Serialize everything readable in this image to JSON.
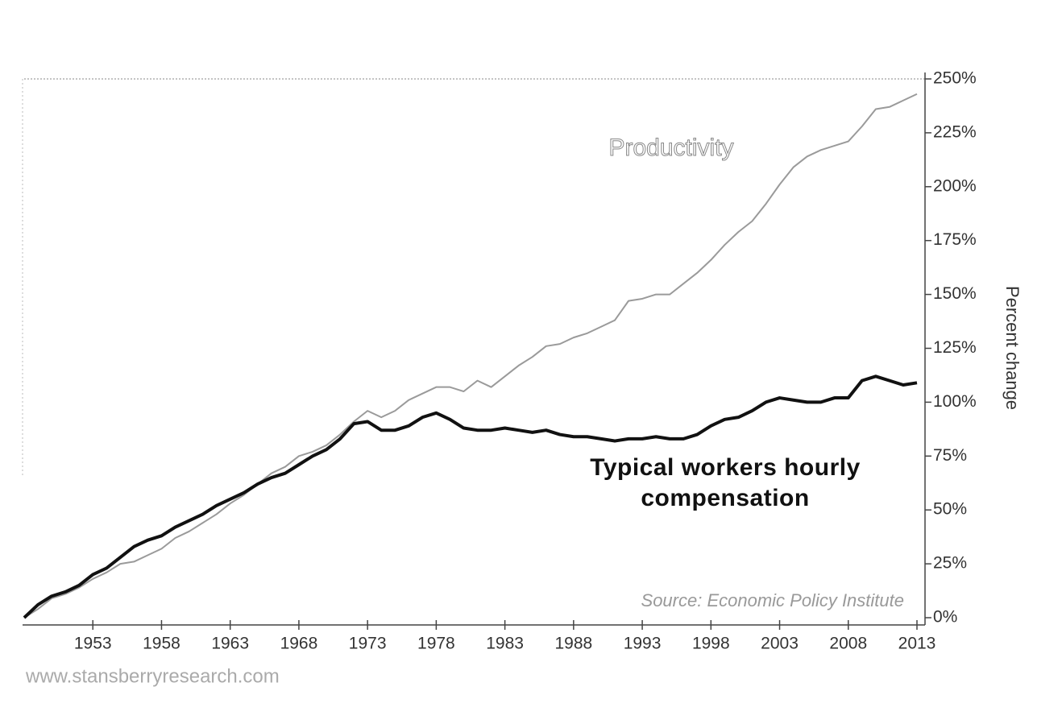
{
  "chart_data": {
    "type": "line",
    "x": [
      1948,
      1949,
      1950,
      1951,
      1952,
      1953,
      1954,
      1955,
      1956,
      1957,
      1958,
      1959,
      1960,
      1961,
      1962,
      1963,
      1964,
      1965,
      1966,
      1967,
      1968,
      1969,
      1970,
      1971,
      1972,
      1973,
      1974,
      1975,
      1976,
      1977,
      1978,
      1979,
      1980,
      1981,
      1982,
      1983,
      1984,
      1985,
      1986,
      1987,
      1988,
      1989,
      1990,
      1991,
      1992,
      1993,
      1994,
      1995,
      1996,
      1997,
      1998,
      1999,
      2000,
      2001,
      2002,
      2003,
      2004,
      2005,
      2006,
      2007,
      2008,
      2009,
      2010,
      2011,
      2012,
      2013
    ],
    "series": [
      {
        "name": "Productivity",
        "color": "#9a9a9a",
        "values": [
          0,
          4,
          9,
          11,
          14,
          18,
          21,
          25,
          26,
          29,
          32,
          37,
          40,
          44,
          48,
          53,
          57,
          62,
          67,
          70,
          75,
          77,
          80,
          85,
          91,
          96,
          93,
          96,
          101,
          104,
          107,
          107,
          105,
          110,
          107,
          112,
          117,
          121,
          126,
          127,
          130,
          132,
          135,
          138,
          147,
          148,
          150,
          150,
          155,
          160,
          166,
          173,
          179,
          184,
          192,
          201,
          209,
          214,
          217,
          219,
          221,
          228,
          236,
          237,
          240,
          243
        ]
      },
      {
        "name": "Typical workers hourly compensation",
        "color": "#111111",
        "values": [
          0,
          6,
          10,
          12,
          15,
          20,
          23,
          28,
          33,
          36,
          38,
          42,
          45,
          48,
          52,
          55,
          58,
          62,
          65,
          67,
          71,
          75,
          78,
          83,
          90,
          91,
          87,
          87,
          89,
          93,
          95,
          92,
          88,
          87,
          87,
          88,
          87,
          86,
          87,
          85,
          84,
          84,
          83,
          82,
          83,
          83,
          84,
          83,
          83,
          85,
          89,
          92,
          93,
          96,
          100,
          102,
          101,
          100,
          100,
          102,
          102,
          110,
          112,
          110,
          108,
          109
        ]
      }
    ],
    "xlim": [
      1948,
      2013
    ],
    "xticks": [
      1953,
      1958,
      1963,
      1968,
      1973,
      1978,
      1983,
      1988,
      1993,
      1998,
      2003,
      2008,
      2013
    ],
    "ylim": [
      0,
      250
    ],
    "yticks": [
      {
        "value": 0,
        "label": "0%"
      },
      {
        "value": 25,
        "label": "25%"
      },
      {
        "value": 50,
        "label": "50%"
      },
      {
        "value": 75,
        "label": "75%"
      },
      {
        "value": 100,
        "label": "100%"
      },
      {
        "value": 125,
        "label": "125%"
      },
      {
        "value": 150,
        "label": "150%"
      },
      {
        "value": 175,
        "label": "175%"
      },
      {
        "value": 200,
        "label": "200%"
      },
      {
        "value": 225,
        "label": "225%"
      },
      {
        "value": 250,
        "label": "250%"
      }
    ],
    "y_label": "Percent change",
    "source": "Source: Economic Policy Institute",
    "watermark": "www.stansberryresearch.com"
  }
}
